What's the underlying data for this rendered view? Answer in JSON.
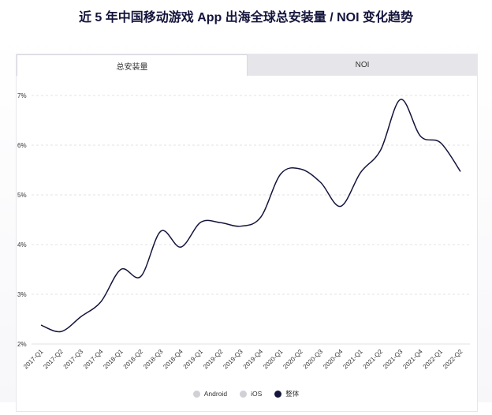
{
  "title": "近 5 年中国移动游戏 App 出海全球总安装量 / NOI 变化趋势",
  "tabs": [
    {
      "label": "总安装量",
      "active": true
    },
    {
      "label": "NOI",
      "active": false
    }
  ],
  "legend": [
    {
      "label": "Android",
      "color": "#d0d0d6"
    },
    {
      "label": "iOS",
      "color": "#d0d0d6"
    },
    {
      "label": "整体",
      "color": "#14143c"
    }
  ],
  "chart_data": {
    "type": "line",
    "x": [
      "2017-Q1",
      "2017-Q2",
      "2017-Q3",
      "2017-Q4",
      "2018-Q1",
      "2018-Q2",
      "2018-Q3",
      "2018-Q4",
      "2019-Q1",
      "2019-Q2",
      "2019-Q3",
      "2019-Q4",
      "2020-Q1",
      "2020-Q2",
      "2020-Q3",
      "2020-Q4",
      "2021-Q1",
      "2021-Q2",
      "2021-Q3",
      "2021-Q4",
      "2022-Q1",
      "2022-Q2"
    ],
    "series": [
      {
        "name": "整体",
        "color": "#14143c",
        "values": [
          2.38,
          2.25,
          2.55,
          2.85,
          3.5,
          3.36,
          4.27,
          3.95,
          4.45,
          4.44,
          4.37,
          4.55,
          5.42,
          5.52,
          5.25,
          4.77,
          5.45,
          5.9,
          6.92,
          6.18,
          6.05,
          5.47
        ]
      }
    ],
    "yticks": [
      2,
      3,
      4,
      5,
      6,
      7
    ],
    "ytick_labels": [
      "2%",
      "3%",
      "4%",
      "5%",
      "6%",
      "7%"
    ],
    "ylim": [
      2,
      7
    ],
    "grid": true,
    "legend_position": "bottom"
  }
}
